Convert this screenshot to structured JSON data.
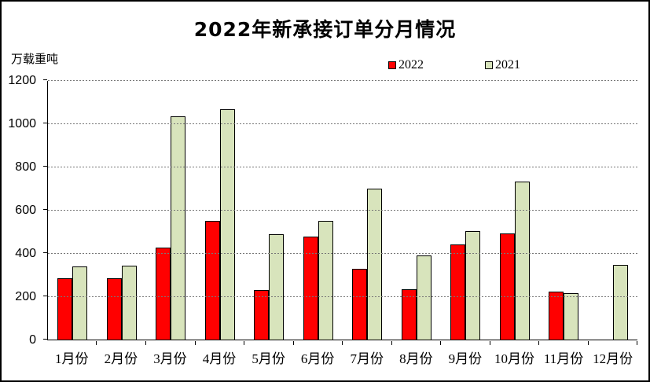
{
  "frame": {
    "background": "#ffffff",
    "border_color": "#000000"
  },
  "chart_data": {
    "type": "bar",
    "title": "2022年新承接订单分月情况",
    "unit_label": "万载重吨",
    "xlabel": "",
    "ylabel": "万载重吨",
    "ylim": [
      0,
      1200
    ],
    "yticks": [
      0,
      200,
      400,
      600,
      800,
      1000,
      1200
    ],
    "grid": "horizontal-dashed",
    "legend_position": "top-center",
    "categories": [
      "1月份",
      "2月份",
      "3月份",
      "4月份",
      "5月份",
      "6月份",
      "7月份",
      "8月份",
      "9月份",
      "10月份",
      "11月份",
      "12月份"
    ],
    "series": [
      {
        "name": "2022",
        "color": "#ff0000",
        "values": [
          283,
          283,
          428,
          549,
          230,
          477,
          327,
          234,
          442,
          494,
          222,
          null
        ]
      },
      {
        "name": "2021",
        "color": "#d8e4bc",
        "values": [
          338,
          343,
          1037,
          1067,
          489,
          551,
          700,
          389,
          503,
          732,
          216,
          345
        ]
      }
    ]
  }
}
